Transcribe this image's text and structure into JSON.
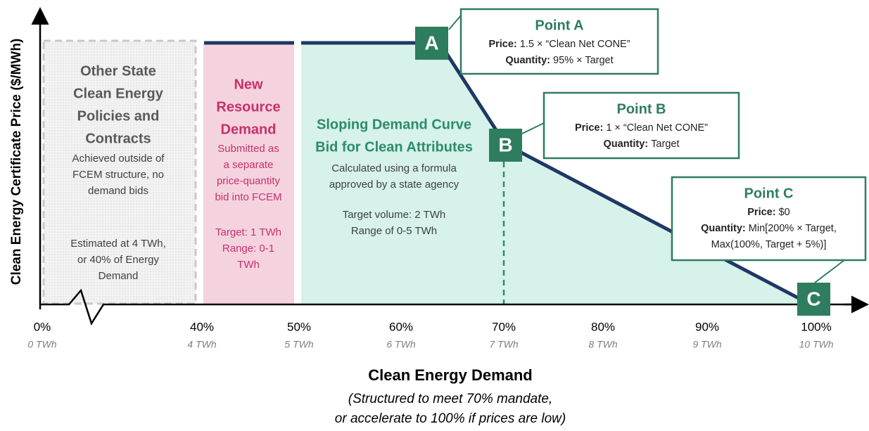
{
  "y_axis_label": "Clean Energy Certificate Price ($/MWh)",
  "x_axis_label": "Clean Energy Demand",
  "x_axis_note": [
    "(Structured to meet 70% mandate,",
    "or accelerate to 100% if prices are low)"
  ],
  "x_ticks": [
    {
      "label": "0%",
      "sub": "0 TWh"
    },
    {
      "label": "40%",
      "sub": "4 TWh"
    },
    {
      "label": "50%",
      "sub": "5 TWh"
    },
    {
      "label": "60%",
      "sub": "6 TWh"
    },
    {
      "label": "70%",
      "sub": "7 TWh"
    },
    {
      "label": "80%",
      "sub": "8 TWh"
    },
    {
      "label": "90%",
      "sub": "9 TWh"
    },
    {
      "label": "100%",
      "sub": "10 TWh"
    }
  ],
  "regions": [
    {
      "title": [
        "Other State",
        "Clean Energy",
        "Policies and",
        "Contracts"
      ],
      "body": [
        "Achieved outside of",
        "FCEM structure, no",
        "demand bids"
      ],
      "body2": [
        "Estimated at 4 TWh,",
        "or 40% of Energy",
        "Demand"
      ]
    },
    {
      "title": [
        "New",
        "Resource",
        "Demand"
      ],
      "body": [
        "Submitted as",
        "a separate",
        "price-quantity",
        "bid into FCEM"
      ],
      "body2": [
        "Target: 1 TWh",
        "Range: 0-1",
        "TWh"
      ]
    },
    {
      "title": [
        "Sloping Demand Curve",
        "Bid for Clean Attributes"
      ],
      "body": [
        "Calculated using a formula",
        "approved by a state agency"
      ],
      "body2": [
        "Target volume: 2 TWh",
        "Range of 0-5 TWh"
      ]
    }
  ],
  "points": [
    {
      "marker": "A",
      "title": "Point A",
      "lines": [
        {
          "key": "Price:",
          "text": "1.5 × “Clean Net CONE”"
        },
        {
          "key": "Quantity:",
          "text": "95% × Target"
        }
      ]
    },
    {
      "marker": "B",
      "title": "Point B",
      "lines": [
        {
          "key": "Price:",
          "text": "1 × “Clean Net CONE”"
        },
        {
          "key": "Quantity:",
          "text": "Target"
        }
      ]
    },
    {
      "marker": "C",
      "title": "Point C",
      "lines": [
        {
          "key": "Price:",
          "text": "$0"
        },
        {
          "key": "Quantity:",
          "text": "Min[200% × Target,"
        },
        {
          "text": "Max(100%, Target + 5%)]"
        }
      ]
    }
  ]
}
